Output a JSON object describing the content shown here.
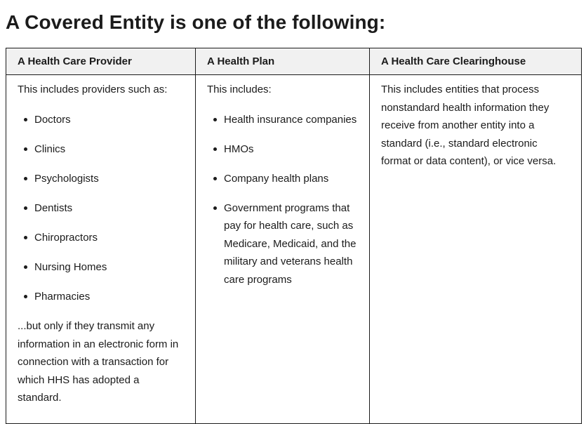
{
  "title": "A Covered Entity is one of the following:",
  "columns": [
    {
      "header": "A Health Care Provider",
      "intro": "This includes providers such as:",
      "items": [
        "Doctors",
        "Clinics",
        "Psychologists",
        "Dentists",
        "Chiropractors",
        "Nursing Homes",
        "Pharmacies"
      ],
      "outro": "...but only if they transmit any information in an electronic form in connection with a transaction for which HHS has adopted a standard."
    },
    {
      "header": "A Health Plan",
      "intro": "This includes:",
      "items": [
        "Health insurance companies",
        "HMOs",
        "Company health plans",
        "Government programs that pay for health care, such as Medicare, Medicaid, and the military and veterans health care programs"
      ]
    },
    {
      "header": "A Health Care Clearinghouse",
      "intro": "This includes entities that process nonstandard health information they receive from another entity into a standard (i.e., standard electronic format or data content), or vice versa."
    }
  ]
}
